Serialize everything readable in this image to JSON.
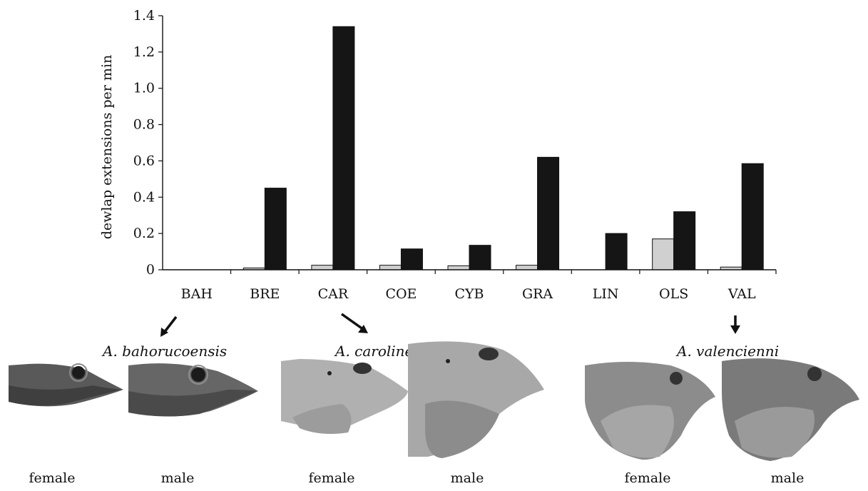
{
  "chart_data": {
    "type": "bar",
    "categories": [
      "BAH",
      "BRE",
      "CAR",
      "COE",
      "CYB",
      "GRA",
      "LIN",
      "OLS",
      "VAL"
    ],
    "series": [
      {
        "color": "#d0d0d0",
        "values": [
          0,
          0.01,
          0.025,
          0.025,
          0.022,
          0.025,
          0,
          0.17,
          0.015
        ]
      },
      {
        "color": "#151515",
        "values": [
          0,
          0.45,
          1.34,
          0.115,
          0.135,
          0.62,
          0.2,
          0.32,
          0.585
        ]
      }
    ],
    "ylabel": "dewlap extensions per min",
    "ylim": [
      0,
      1.4
    ],
    "yticks": [
      0,
      0.2,
      0.4,
      0.6,
      0.8,
      1.0,
      1.2,
      1.4
    ],
    "ytick_labels": [
      "0",
      "0.2",
      "0.4",
      "0.6",
      "0.8",
      "1.0",
      "1.2",
      "1.4"
    ],
    "grid": false
  },
  "illustrations": {
    "species": [
      {
        "name": "A. bahorucoensis",
        "from_category": "BAH",
        "female_label": "female",
        "male_label": "male",
        "skin": "#6a6a6a"
      },
      {
        "name": "A. carolinensis",
        "from_category": "CAR",
        "female_label": "female",
        "male_label": "male",
        "skin": "#b3b3b3"
      },
      {
        "name": "A. valencienni",
        "from_category": "VAL",
        "female_label": "female",
        "male_label": "male",
        "skin": "#8f8f8f"
      }
    ]
  }
}
